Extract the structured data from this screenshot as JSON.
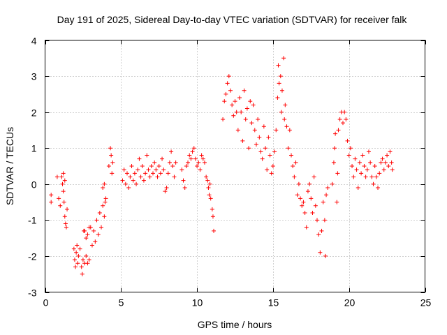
{
  "chart_data": {
    "type": "scatter",
    "title": "Day 191 of 2025, Sidereal Day-to-day VTEC variation (SDTVAR) for receiver falk",
    "xlabel": "GPS time / hours",
    "ylabel": "SDTVAR / TECUs",
    "xlim": [
      0,
      25
    ],
    "ylim": [
      -3,
      4
    ],
    "xticks": [
      0,
      5,
      10,
      15,
      20,
      25
    ],
    "yticks": [
      -3,
      -2,
      -1,
      0,
      1,
      2,
      3,
      4
    ],
    "grid": true,
    "marker": "+",
    "color": "#ff0000",
    "series": [
      {
        "name": "SDTVAR",
        "points": [
          [
            0.4,
            -0.3
          ],
          [
            0.4,
            -0.5
          ],
          [
            0.8,
            0.2
          ],
          [
            0.9,
            -0.4
          ],
          [
            1.0,
            -0.6
          ],
          [
            1.1,
            0.2
          ],
          [
            1.15,
            0.0
          ],
          [
            1.2,
            -0.2
          ],
          [
            1.25,
            -0.5
          ],
          [
            1.3,
            -0.9
          ],
          [
            1.35,
            -1.1
          ],
          [
            1.4,
            -1.2
          ],
          [
            1.45,
            -0.7
          ],
          [
            1.2,
            0.3
          ],
          [
            1.3,
            0.1
          ],
          [
            1.9,
            -1.8
          ],
          [
            1.95,
            -2.1
          ],
          [
            2.0,
            -2.3
          ],
          [
            2.05,
            -1.9
          ],
          [
            2.1,
            -1.7
          ],
          [
            2.15,
            -2.2
          ],
          [
            2.2,
            -2.0
          ],
          [
            2.3,
            -1.8
          ],
          [
            2.4,
            -2.3
          ],
          [
            2.45,
            -2.5
          ],
          [
            2.5,
            -2.1
          ],
          [
            2.55,
            -1.3
          ],
          [
            2.6,
            -2.2
          ],
          [
            2.7,
            -2.0
          ],
          [
            2.8,
            -2.2
          ],
          [
            2.9,
            -2.1
          ],
          [
            2.6,
            -1.3
          ],
          [
            2.7,
            -1.5
          ],
          [
            2.8,
            -1.4
          ],
          [
            2.9,
            -1.2
          ],
          [
            3.0,
            -1.2
          ],
          [
            3.1,
            -1.7
          ],
          [
            3.2,
            -1.3
          ],
          [
            3.3,
            -1.6
          ],
          [
            3.4,
            -1.0
          ],
          [
            3.5,
            -1.4
          ],
          [
            3.6,
            -0.8
          ],
          [
            3.7,
            -1.2
          ],
          [
            3.8,
            -0.6
          ],
          [
            3.9,
            -0.9
          ],
          [
            3.95,
            -0.5
          ],
          [
            4.0,
            -0.4
          ],
          [
            3.8,
            -0.1
          ],
          [
            3.9,
            0.0
          ],
          [
            4.2,
            0.5
          ],
          [
            4.3,
            1.0
          ],
          [
            4.35,
            0.8
          ],
          [
            4.4,
            0.3
          ],
          [
            4.45,
            0.6
          ],
          [
            5.1,
            0.1
          ],
          [
            5.2,
            0.4
          ],
          [
            5.3,
            0.0
          ],
          [
            5.4,
            0.3
          ],
          [
            5.5,
            -0.1
          ],
          [
            5.6,
            0.2
          ],
          [
            5.7,
            0.5
          ],
          [
            5.8,
            0.1
          ],
          [
            5.9,
            0.3
          ],
          [
            6.0,
            0.0
          ],
          [
            6.1,
            0.4
          ],
          [
            6.2,
            0.7
          ],
          [
            6.3,
            0.2
          ],
          [
            6.4,
            0.5
          ],
          [
            6.5,
            0.1
          ],
          [
            6.6,
            0.3
          ],
          [
            6.7,
            0.8
          ],
          [
            6.8,
            0.4
          ],
          [
            6.9,
            0.2
          ],
          [
            7.0,
            0.5
          ],
          [
            7.1,
            0.3
          ],
          [
            7.2,
            0.6
          ],
          [
            7.3,
            0.4
          ],
          [
            7.4,
            0.2
          ],
          [
            7.5,
            0.5
          ],
          [
            7.6,
            0.3
          ],
          [
            7.7,
            0.7
          ],
          [
            7.8,
            0.4
          ],
          [
            7.9,
            -0.2
          ],
          [
            8.0,
            -0.1
          ],
          [
            8.1,
            0.3
          ],
          [
            8.2,
            0.6
          ],
          [
            8.3,
            0.9
          ],
          [
            8.4,
            0.5
          ],
          [
            8.5,
            0.2
          ],
          [
            8.6,
            0.6
          ],
          [
            9.0,
            0.4
          ],
          [
            9.1,
            0.1
          ],
          [
            9.2,
            -0.1
          ],
          [
            9.3,
            0.5
          ],
          [
            9.4,
            0.6
          ],
          [
            9.5,
            0.8
          ],
          [
            9.6,
            0.7
          ],
          [
            9.7,
            0.9
          ],
          [
            9.8,
            1.0
          ],
          [
            9.9,
            0.7
          ],
          [
            10.0,
            0.5
          ],
          [
            10.1,
            0.6
          ],
          [
            10.2,
            0.4
          ],
          [
            10.3,
            0.8
          ],
          [
            10.4,
            0.7
          ],
          [
            10.5,
            0.6
          ],
          [
            10.6,
            0.2
          ],
          [
            10.7,
            0.1
          ],
          [
            10.75,
            -0.1
          ],
          [
            10.8,
            -0.3
          ],
          [
            10.85,
            0.0
          ],
          [
            10.9,
            -0.4
          ],
          [
            11.0,
            -0.7
          ],
          [
            11.05,
            -0.9
          ],
          [
            11.1,
            -1.3
          ],
          [
            11.7,
            1.8
          ],
          [
            11.8,
            2.3
          ],
          [
            11.9,
            2.5
          ],
          [
            12.0,
            2.8
          ],
          [
            12.1,
            3.0
          ],
          [
            12.2,
            2.6
          ],
          [
            12.3,
            2.2
          ],
          [
            12.4,
            1.9
          ],
          [
            12.5,
            2.3
          ],
          [
            12.6,
            2.0
          ],
          [
            12.7,
            1.5
          ],
          [
            12.8,
            2.4
          ],
          [
            12.9,
            2.0
          ],
          [
            13.0,
            1.2
          ],
          [
            13.1,
            2.6
          ],
          [
            13.2,
            1.8
          ],
          [
            13.3,
            2.1
          ],
          [
            13.4,
            1.0
          ],
          [
            13.5,
            2.3
          ],
          [
            13.6,
            1.7
          ],
          [
            13.7,
            2.2
          ],
          [
            13.8,
            1.5
          ],
          [
            13.9,
            1.1
          ],
          [
            14.0,
            1.8
          ],
          [
            14.1,
            1.3
          ],
          [
            14.2,
            0.9
          ],
          [
            14.3,
            0.7
          ],
          [
            14.4,
            1.6
          ],
          [
            14.5,
            1.0
          ],
          [
            14.6,
            0.4
          ],
          [
            14.7,
            1.3
          ],
          [
            14.8,
            0.8
          ],
          [
            14.9,
            0.3
          ],
          [
            15.0,
            0.5
          ],
          [
            15.1,
            0.9
          ],
          [
            15.2,
            1.5
          ],
          [
            15.3,
            2.4
          ],
          [
            15.35,
            3.3
          ],
          [
            15.4,
            2.8
          ],
          [
            15.5,
            3.0
          ],
          [
            15.55,
            2.0
          ],
          [
            15.6,
            2.6
          ],
          [
            15.7,
            3.5
          ],
          [
            15.75,
            1.8
          ],
          [
            15.8,
            2.2
          ],
          [
            15.9,
            1.6
          ],
          [
            16.0,
            1.0
          ],
          [
            16.1,
            1.5
          ],
          [
            16.2,
            0.8
          ],
          [
            16.3,
            0.5
          ],
          [
            16.4,
            0.2
          ],
          [
            16.5,
            0.6
          ],
          [
            16.6,
            -0.3
          ],
          [
            16.7,
            0.0
          ],
          [
            16.8,
            -0.4
          ],
          [
            16.9,
            -0.6
          ],
          [
            17.0,
            -0.5
          ],
          [
            17.1,
            -0.8
          ],
          [
            17.2,
            -1.2
          ],
          [
            17.3,
            -0.2
          ],
          [
            17.4,
            0.0
          ],
          [
            17.5,
            -0.4
          ],
          [
            17.6,
            -0.8
          ],
          [
            17.7,
            0.2
          ],
          [
            17.8,
            -0.6
          ],
          [
            17.9,
            -1.0
          ],
          [
            18.0,
            -1.4
          ],
          [
            18.1,
            -1.9
          ],
          [
            18.2,
            -1.3
          ],
          [
            18.3,
            -0.5
          ],
          [
            18.4,
            -1.0
          ],
          [
            18.45,
            -2.0
          ],
          [
            18.5,
            -0.3
          ],
          [
            18.6,
            -0.1
          ],
          [
            18.9,
            0.0
          ],
          [
            19.0,
            0.6
          ],
          [
            19.05,
            1.0
          ],
          [
            19.1,
            1.4
          ],
          [
            19.2,
            -0.5
          ],
          [
            19.25,
            0.3
          ],
          [
            19.3,
            1.5
          ],
          [
            19.4,
            1.8
          ],
          [
            19.5,
            2.0
          ],
          [
            19.6,
            1.7
          ],
          [
            19.7,
            2.0
          ],
          [
            19.8,
            1.8
          ],
          [
            19.9,
            1.2
          ],
          [
            20.0,
            0.8
          ],
          [
            20.1,
            1.0
          ],
          [
            20.2,
            0.5
          ],
          [
            20.3,
            0.2
          ],
          [
            20.4,
            0.7
          ],
          [
            20.5,
            0.4
          ],
          [
            20.6,
            -0.1
          ],
          [
            20.7,
            0.6
          ],
          [
            20.8,
            0.3
          ],
          [
            20.9,
            0.8
          ],
          [
            21.0,
            0.5
          ],
          [
            21.1,
            0.2
          ],
          [
            21.2,
            0.4
          ],
          [
            21.3,
            0.9
          ],
          [
            21.4,
            0.6
          ],
          [
            21.5,
            0.2
          ],
          [
            21.6,
            0.0
          ],
          [
            21.7,
            0.5
          ],
          [
            21.8,
            0.2
          ],
          [
            21.9,
            -0.1
          ],
          [
            22.0,
            0.3
          ],
          [
            22.1,
            0.6
          ],
          [
            22.2,
            0.7
          ],
          [
            22.3,
            0.4
          ],
          [
            22.4,
            0.6
          ],
          [
            22.5,
            0.8
          ],
          [
            22.6,
            0.5
          ],
          [
            22.7,
            0.9
          ],
          [
            22.8,
            0.6
          ],
          [
            22.85,
            0.4
          ]
        ]
      }
    ]
  }
}
